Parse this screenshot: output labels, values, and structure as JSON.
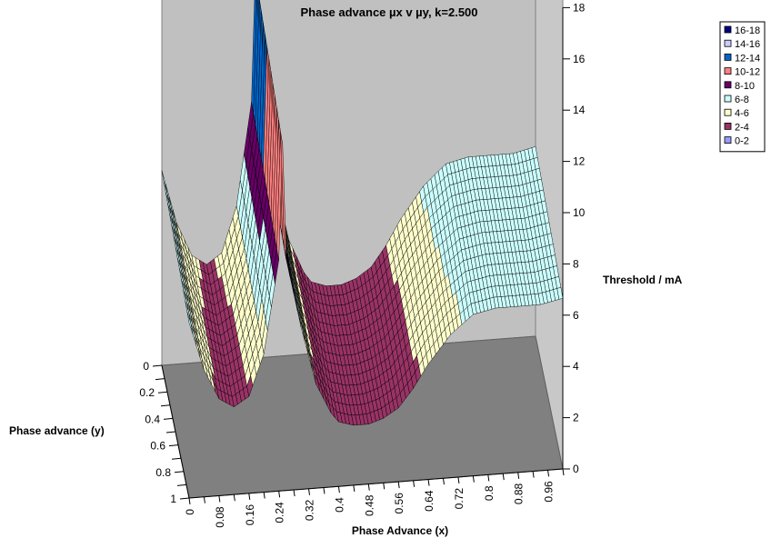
{
  "chart_data": {
    "type": "surface-3d",
    "title": "Phase advance µx v µy,  k=2.500",
    "xlabel": "Phase Advance (x)",
    "ylabel": "Phase advance (y)",
    "zlabel": "Threshold / mA",
    "x_ticks": [
      "0",
      "0.08",
      "0.16",
      "0.24",
      "0.32",
      "0.4",
      "0.48",
      "0.56",
      "0.64",
      "0.72",
      "0.8",
      "0.88",
      "0.96"
    ],
    "y_ticks": [
      "0",
      "0.2",
      "0.4",
      "0.6",
      "0.8",
      "1"
    ],
    "z_ticks": [
      "0",
      "2",
      "4",
      "6",
      "8",
      "10",
      "12",
      "14",
      "16",
      "18"
    ],
    "zlim": [
      0,
      18
    ],
    "legend_position": "top-right",
    "legend": [
      {
        "label": "16-18",
        "color": "#000080"
      },
      {
        "label": "14-16",
        "color": "#CCCCFF"
      },
      {
        "label": "12-14",
        "color": "#0066CC"
      },
      {
        "label": "10-12",
        "color": "#FF8080"
      },
      {
        "label": "8-10",
        "color": "#660066"
      },
      {
        "label": "6-8",
        "color": "#CCFFFF"
      },
      {
        "label": "4-6",
        "color": "#FFFFCC"
      },
      {
        "label": "2-4",
        "color": "#993366"
      },
      {
        "label": "0-2",
        "color": "#9999FF"
      }
    ],
    "surface_profile": {
      "mu_x": [
        0.0,
        0.04,
        0.08,
        0.12,
        0.16,
        0.2,
        0.24,
        0.25,
        0.26,
        0.3,
        0.34,
        0.38,
        0.4,
        0.44,
        0.48,
        0.52,
        0.56,
        0.6,
        0.64,
        0.7,
        0.76,
        0.82,
        0.88,
        0.94,
        1.0
      ],
      "threshold": [
        7.6,
        5.5,
        4.2,
        3.8,
        4.2,
        6.0,
        10.0,
        15.0,
        10.0,
        7.0,
        4.5,
        3.2,
        2.8,
        2.6,
        2.6,
        2.8,
        3.2,
        4.0,
        5.0,
        6.2,
        7.0,
        7.2,
        7.2,
        7.2,
        7.4
      ],
      "y_variation": "nearly constant along y, slightly lower near y=1"
    }
  }
}
